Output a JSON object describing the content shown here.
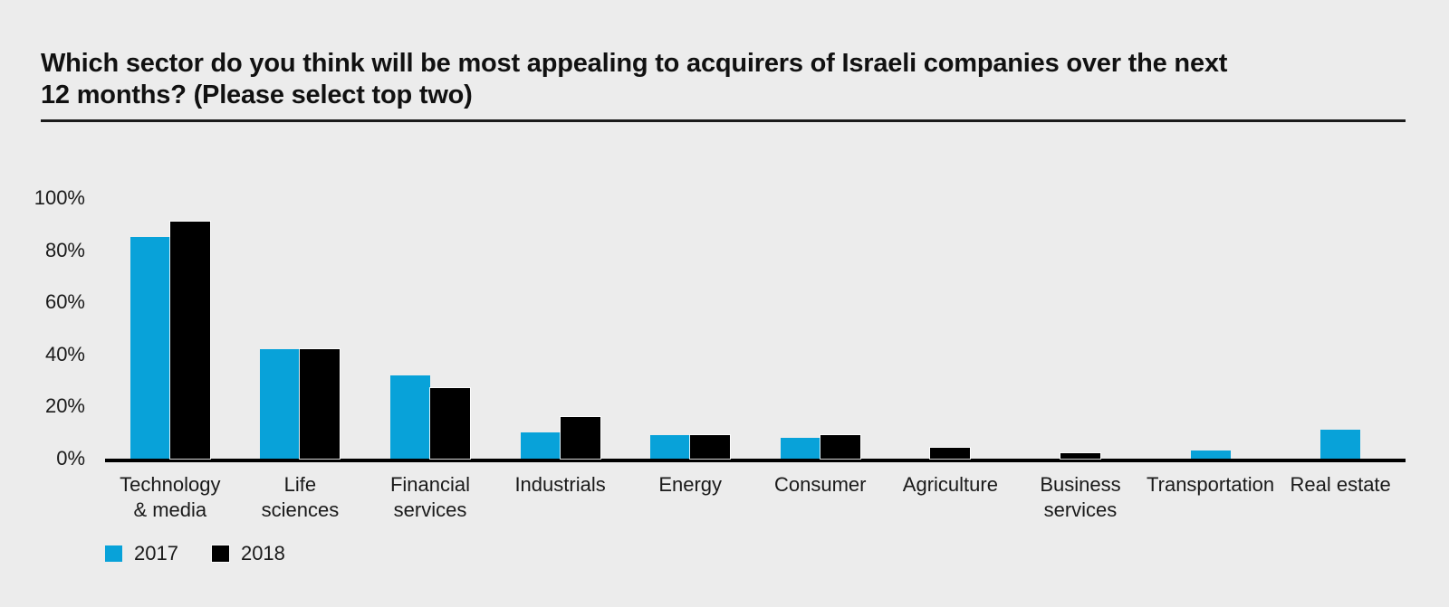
{
  "page": {
    "background": "#ececec",
    "text_color": "#1a1a1a"
  },
  "header": {
    "title_line1": "Which sector do you think will be most appealing to acquirers of Israeli companies over the next",
    "title_line2": "12 months? (Please select top two)"
  },
  "chart_data": {
    "type": "bar",
    "title": "Which sector do you think will be most appealing to acquirers of Israeli companies over the next 12 months? (Please select top two)",
    "categories": [
      "Technology & media",
      "Life sciences",
      "Financial services",
      "Industrials",
      "Energy",
      "Consumer",
      "Agriculture",
      "Business services",
      "Transportation",
      "Real estate"
    ],
    "category_labels": [
      "Technology\n& media",
      "Life\nsciences",
      "Financial\nservices",
      "Industrials",
      "Energy",
      "Consumer",
      "Agriculture",
      "Business\nservices",
      "Transportation",
      "Real estate"
    ],
    "series": [
      {
        "name": "2017",
        "color": "#08A2D9",
        "values": [
          85,
          42,
          32,
          10,
          9,
          8,
          0,
          0,
          3,
          11
        ]
      },
      {
        "name": "2018",
        "color": "#000000",
        "values": [
          91,
          42,
          27,
          16,
          9,
          9,
          4,
          2,
          0,
          0
        ]
      }
    ],
    "unit": "%",
    "yticks": [
      "100%",
      "80%",
      "60%",
      "40%",
      "20%",
      "0%"
    ],
    "ylim": [
      0,
      100
    ],
    "grid": false,
    "legend_position": "bottom-left"
  },
  "legend": {
    "items": [
      {
        "label": "2017",
        "color": "#08A2D9"
      },
      {
        "label": "2018",
        "color": "#000000"
      }
    ]
  }
}
